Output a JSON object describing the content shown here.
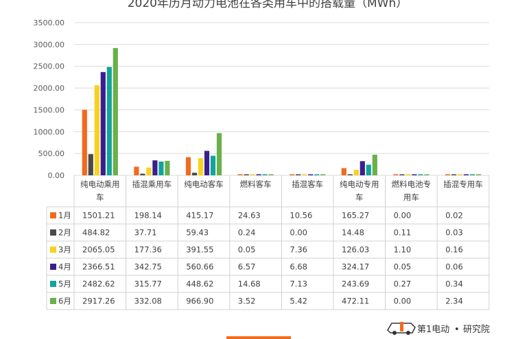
{
  "chart_data": {
    "type": "bar",
    "title": "2020年历月动力电池在各类用车中的搭载量（MWh）",
    "ylim": [
      0,
      3500
    ],
    "yticks": [
      "0.00",
      "500.00",
      "1000.00",
      "1500.00",
      "2000.00",
      "2500.00",
      "3000.00",
      "3500.00"
    ],
    "grid": true,
    "legend": "data-table-left",
    "categories": [
      "纯电动乘用车",
      "插混乘用车",
      "纯电动客车",
      "燃料客车",
      "插混客车",
      "纯电动专用车",
      "燃料电池专用车",
      "插混专用车"
    ],
    "series": [
      {
        "name": "1月",
        "color": "#f26b1d",
        "values": [
          1501.21,
          198.14,
          415.17,
          24.63,
          10.56,
          165.27,
          0.0,
          0.02
        ],
        "labels": [
          "1501.21",
          "198.14",
          "415.17",
          "24.63",
          "10.56",
          "165.27",
          "0.00",
          "0.02"
        ]
      },
      {
        "name": "2月",
        "color": "#4a4a4a",
        "values": [
          484.82,
          37.71,
          59.43,
          0.24,
          0.0,
          14.48,
          0.11,
          0.03
        ],
        "labels": [
          "484.82",
          "37.71",
          "59.43",
          "0.24",
          "0.00",
          "14.48",
          "0.11",
          "0.03"
        ]
      },
      {
        "name": "3月",
        "color": "#f7d21e",
        "values": [
          2065.05,
          177.36,
          391.55,
          0.05,
          7.36,
          126.03,
          1.1,
          0.16
        ],
        "labels": [
          "2065.05",
          "177.36",
          "391.55",
          "0.05",
          "7.36",
          "126.03",
          "1.10",
          "0.16"
        ]
      },
      {
        "name": "4月",
        "color": "#3b1e8e",
        "values": [
          2366.51,
          342.75,
          560.66,
          6.57,
          6.68,
          324.17,
          0.05,
          0.06
        ],
        "labels": [
          "2366.51",
          "342.75",
          "560.66",
          "6.57",
          "6.68",
          "324.17",
          "0.05",
          "0.06"
        ]
      },
      {
        "name": "5月",
        "color": "#12a39b",
        "values": [
          2482.62,
          315.77,
          448.62,
          14.68,
          7.13,
          243.69,
          0.27,
          0.34
        ],
        "labels": [
          "2482.62",
          "315.77",
          "448.62",
          "14.68",
          "7.13",
          "243.69",
          "0.27",
          "0.34"
        ]
      },
      {
        "name": "6月",
        "color": "#6ab04c",
        "values": [
          2917.26,
          332.08,
          966.9,
          3.52,
          5.42,
          472.11,
          0.0,
          2.34
        ],
        "labels": [
          "2917.26",
          "332.08",
          "966.90",
          "3.52",
          "5.42",
          "472.11",
          "0.00",
          "2.34"
        ]
      }
    ]
  },
  "watermark": {
    "brand": "第1电动",
    "dot": "•",
    "suffix": "研究院"
  },
  "colors": {
    "accent": "#f26b1d"
  }
}
